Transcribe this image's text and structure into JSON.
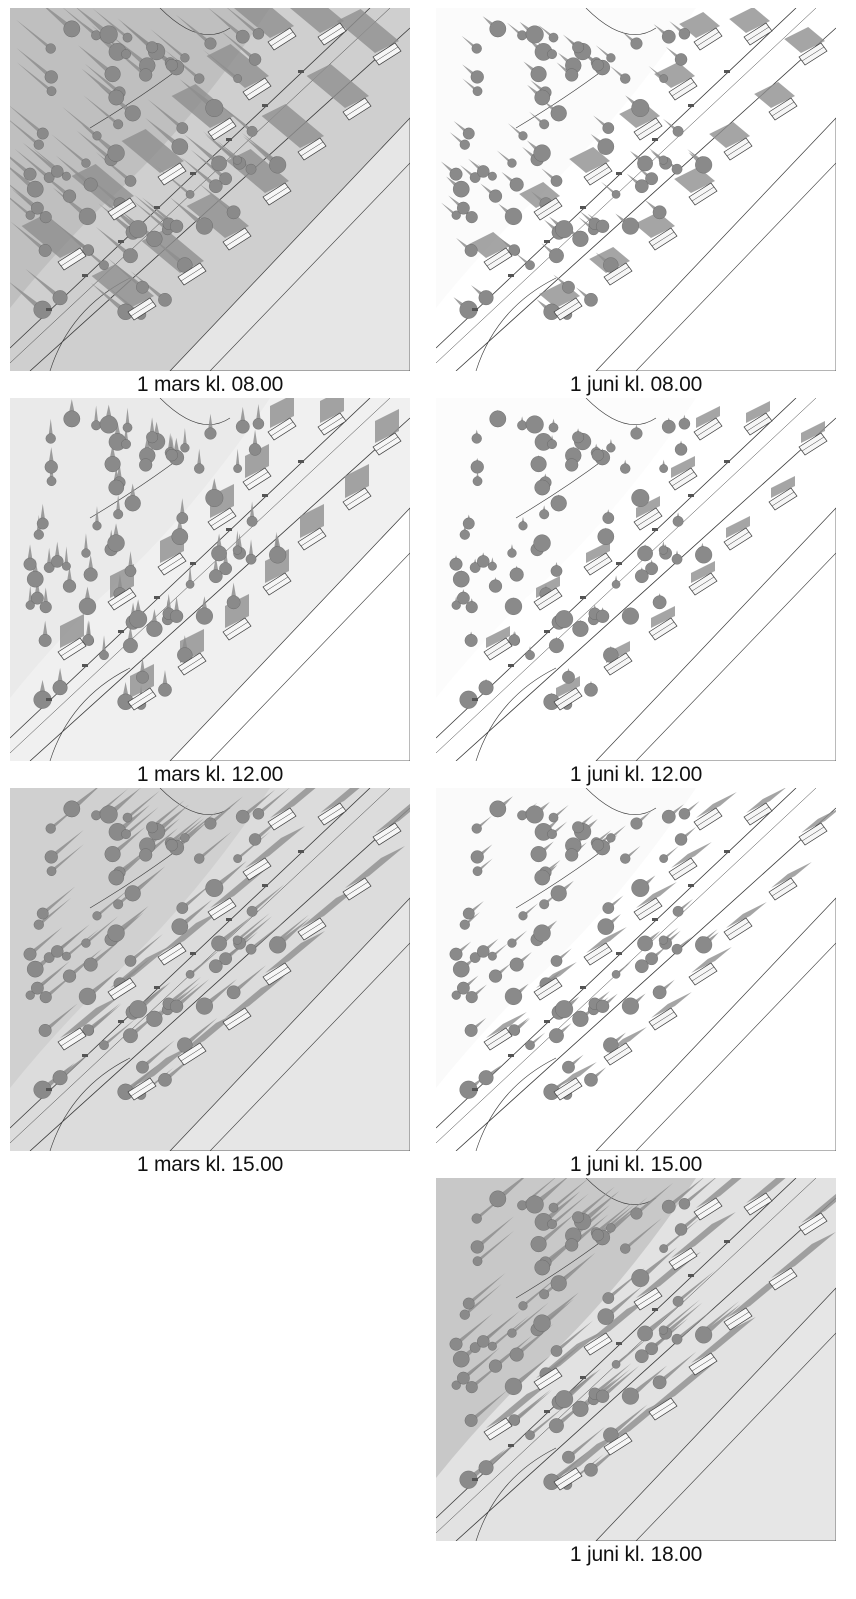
{
  "panels": [
    {
      "id": "m08",
      "caption": "1 mars kl. 08.00",
      "ground": "#cfcfcf",
      "shadow_dir": -1,
      "shadow_len": 3.2,
      "hill": 0.75
    },
    {
      "id": "j08",
      "caption": "1 juni kl. 08.00",
      "ground": "#ffffff",
      "shadow_dir": -1,
      "shadow_len": 1.4,
      "hill": 0.05
    },
    {
      "id": "m12",
      "caption": "1 mars kl. 12.00",
      "ground": "#f0f0f0",
      "shadow_dir": 0,
      "shadow_len": 2.2,
      "hill": 0.25
    },
    {
      "id": "j12",
      "caption": "1 juni kl. 12.00",
      "ground": "#ffffff",
      "shadow_dir": 0,
      "shadow_len": 1.0,
      "hill": 0.03
    },
    {
      "id": "m15",
      "caption": "1 mars kl. 15.00",
      "ground": "#dcdcdc",
      "shadow_dir": 1,
      "shadow_len": 3.0,
      "hill": 0.55
    },
    {
      "id": "j15",
      "caption": "1 juni kl. 15.00",
      "ground": "#ffffff",
      "shadow_dir": 1,
      "shadow_len": 1.4,
      "hill": 0.06
    },
    {
      "id": "j18",
      "caption": "1 juni kl. 18.00",
      "ground": "#e2e2e2",
      "shadow_dir": 1,
      "shadow_len": 3.4,
      "hill": 0.65
    }
  ],
  "colors": {
    "shadow": "#8e8e8e",
    "tree": "#8a8a8a",
    "line": "#3a3a3a",
    "roof": "#f6f6f6"
  }
}
